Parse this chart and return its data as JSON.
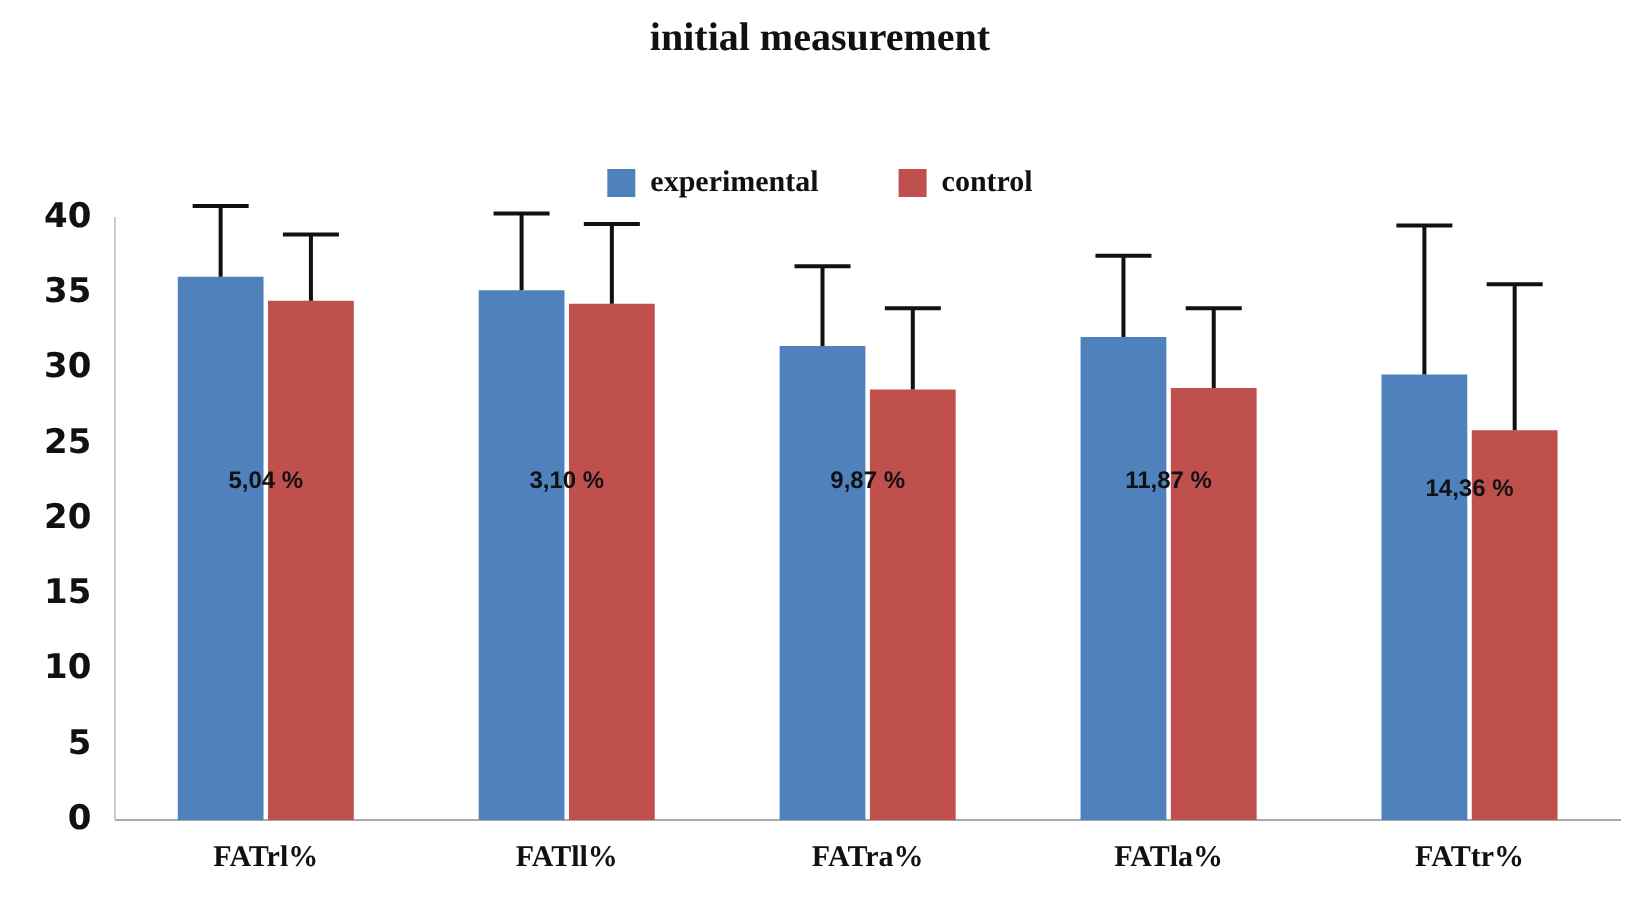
{
  "chart_data": {
    "type": "bar",
    "title": "initial measurement",
    "categories": [
      "FATrl%",
      "FATll%",
      "FATra%",
      "FATla%",
      "FATtr%"
    ],
    "series": [
      {
        "name": "experimental",
        "color": "#4f81bd",
        "values": [
          36.1,
          35.2,
          31.5,
          32.1,
          29.6
        ],
        "errors": [
          [
            36.1,
            40.8
          ],
          [
            35.2,
            40.3
          ],
          [
            31.5,
            36.8
          ],
          [
            32.1,
            37.5
          ],
          [
            29.6,
            39.5
          ]
        ]
      },
      {
        "name": "control",
        "color": "#c0504d",
        "values": [
          34.5,
          34.3,
          28.6,
          28.7,
          25.9
        ],
        "errors": [
          [
            34.5,
            38.9
          ],
          [
            34.3,
            39.6
          ],
          [
            28.6,
            34.0
          ],
          [
            28.7,
            34.0
          ],
          [
            25.9,
            35.6
          ]
        ]
      }
    ],
    "ylim": [
      0,
      40
    ],
    "yticks": [
      0,
      5,
      10,
      15,
      20,
      25,
      30,
      35,
      40
    ],
    "grid": false,
    "legend": "top",
    "annotations": [
      {
        "text": "5,04 %",
        "x": "FATrl%",
        "y": 22.5
      },
      {
        "text": "3,10 %",
        "x": "FATll%",
        "y": 22.5
      },
      {
        "text": "9,87 %",
        "x": "FATra%",
        "y": 22.5
      },
      {
        "text": "11,87 %",
        "x": "FATla%",
        "y": 22.5
      },
      {
        "text": "14,36 %",
        "x": "FATtr%",
        "y": 22
      }
    ]
  }
}
